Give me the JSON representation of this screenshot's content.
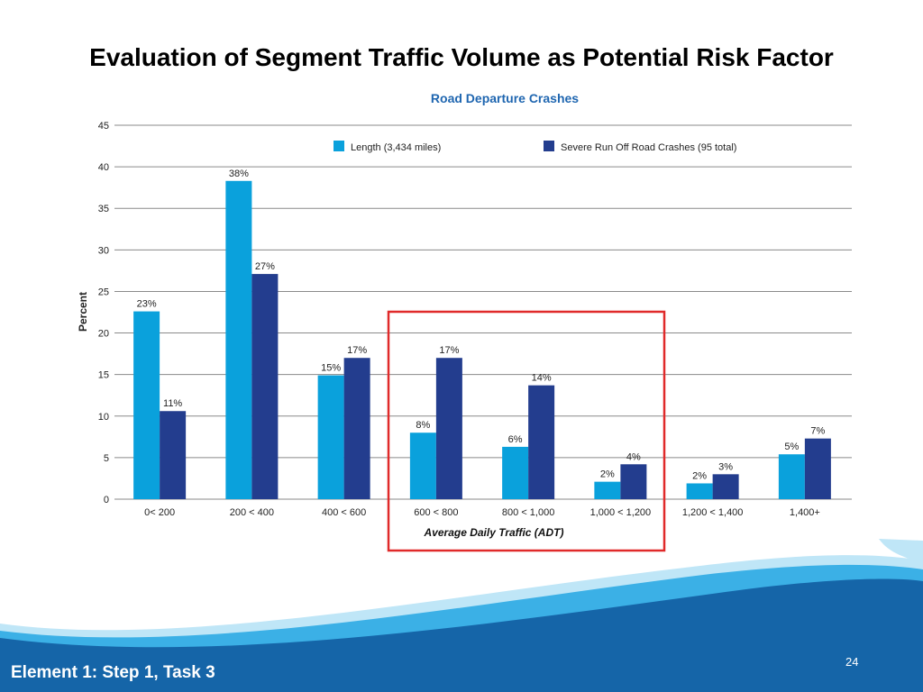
{
  "slide": {
    "title": "Evaluation of Segment Traffic Volume as Potential Risk Factor",
    "footer_text": "Element 1: Step 1, Task 3",
    "page_number": "24"
  },
  "colors": {
    "length": "#0aa1dc",
    "crashes": "#233d8e",
    "highlight": "#e02a2a",
    "chart_title": "#1f66b0",
    "footer_dark": "#1565a8",
    "footer_light": "#3bb0e6"
  },
  "chart_data": {
    "type": "bar",
    "title": "Road Departure Crashes",
    "xlabel": "Average Daily Traffic (ADT)",
    "ylabel": "Percent",
    "ylim": [
      0,
      45
    ],
    "yticks": [
      0,
      5,
      10,
      15,
      20,
      25,
      30,
      35,
      40,
      45
    ],
    "grid": true,
    "legend_position": "top",
    "categories": [
      "0< 200",
      "200 < 400",
      "400 < 600",
      "600 < 800",
      "800 < 1,000",
      "1,000 < 1,200",
      "1,200 < 1,400",
      "1,400+"
    ],
    "series": [
      {
        "name": "Length (3,434 miles)",
        "color": "#0aa1dc",
        "values": [
          22.6,
          38.3,
          14.9,
          8.0,
          6.3,
          2.1,
          1.9,
          5.4
        ],
        "labels": [
          "23%",
          "38%",
          "15%",
          "8%",
          "6%",
          "2%",
          "2%",
          "5%"
        ]
      },
      {
        "name": "Severe Run Off Road Crashes (95 total)",
        "color": "#233d8e",
        "values": [
          10.6,
          27.1,
          17.0,
          17.0,
          13.7,
          4.2,
          3.0,
          7.3
        ],
        "labels": [
          "11%",
          "27%",
          "17%",
          "17%",
          "14%",
          "4%",
          "3%",
          "7%"
        ]
      }
    ],
    "highlight_categories": [
      "600 < 800",
      "800 < 1,000",
      "1,000 < 1,200"
    ]
  }
}
